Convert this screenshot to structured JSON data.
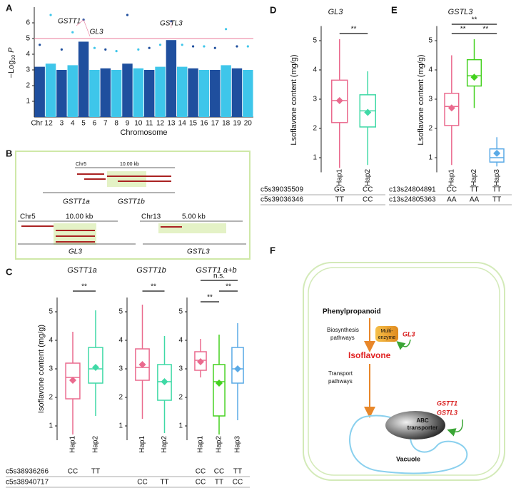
{
  "panel_labels": [
    "A",
    "B",
    "C",
    "D",
    "E",
    "F"
  ],
  "chart_data": [
    {
      "type": "manhattan",
      "ylabel": [
        "−Log",
        "10",
        "P"
      ],
      "xlabel": "Chromosome",
      "categories": [
        "Chr 1",
        "2",
        "3",
        "4",
        "5",
        "6",
        "7",
        "8",
        "9",
        "10",
        "11",
        "12",
        "13",
        "14",
        "15",
        "16",
        "17",
        "18",
        "19",
        "20"
      ],
      "values": [
        3.2,
        3.4,
        3.0,
        3.3,
        4.8,
        3.0,
        3.1,
        3.0,
        3.4,
        3.1,
        3.0,
        3.2,
        4.9,
        3.2,
        3.1,
        3.0,
        3.0,
        3.3,
        3.1,
        3.0
      ],
      "peaks": [
        4.6,
        6.5,
        4.3,
        5.4,
        6.2,
        4.4,
        4.3,
        4.2,
        6.5,
        4.3,
        4.4,
        4.6,
        6.1,
        4.6,
        4.5,
        4.5,
        4.4,
        5.6,
        4.5,
        4.5
      ],
      "colors": [
        "#1f4f9e",
        "#3ec6ea"
      ],
      "threshold": 5,
      "threshold_color": "#e8799a",
      "annotations": [
        "GSTT1",
        "GL3",
        "GSTL3"
      ],
      "ylim": [
        0,
        7
      ],
      "yticks": [
        1,
        2,
        3,
        4,
        5,
        6
      ]
    },
    {
      "type": "box",
      "title": "GSTT1a",
      "ylabel": "Isoflavone content (mg/g)",
      "categories": [
        "Hap1",
        "Hap2"
      ],
      "colors": [
        "#ea6a8e",
        "#3fd9a6"
      ],
      "boxes": [
        {
          "min": 0.7,
          "q1": 1.95,
          "median": 2.7,
          "q3": 3.2,
          "max": 4.3,
          "mean": 2.6
        },
        {
          "min": 1.35,
          "q1": 2.5,
          "median": 3.0,
          "q3": 3.75,
          "max": 5.05,
          "mean": 3.05
        }
      ],
      "comparisons": [
        {
          "pair": [
            0,
            1
          ],
          "label": "**"
        }
      ],
      "ylim": [
        0.5,
        5.5
      ],
      "yticks": [
        1,
        2,
        3,
        4,
        5
      ]
    },
    {
      "type": "box",
      "title": "GSTT1b",
      "categories": [
        "Hap1",
        "Hap2"
      ],
      "colors": [
        "#ea6a8e",
        "#3fd9a6"
      ],
      "boxes": [
        {
          "min": 1.25,
          "q1": 2.6,
          "median": 3.05,
          "q3": 3.7,
          "max": 5.25,
          "mean": 3.15
        },
        {
          "min": 0.75,
          "q1": 1.9,
          "median": 2.55,
          "q3": 3.15,
          "max": 4.15,
          "mean": 2.55
        }
      ],
      "comparisons": [
        {
          "pair": [
            0,
            1
          ],
          "label": "**"
        }
      ],
      "ylim": [
        0.5,
        5.5
      ],
      "yticks": [
        1,
        2,
        3,
        4,
        5
      ]
    },
    {
      "type": "box",
      "title": "GSTT1 a+b",
      "categories": [
        "Hap1",
        "Hap2",
        "Hap3"
      ],
      "colors": [
        "#ea6a8e",
        "#44d11f",
        "#5aaae6"
      ],
      "boxes": [
        {
          "min": 2.7,
          "q1": 2.95,
          "median": 3.3,
          "q3": 3.6,
          "max": 4.05,
          "mean": 3.25
        },
        {
          "min": 0.7,
          "q1": 1.35,
          "median": 2.55,
          "q3": 3.15,
          "max": 4.2,
          "mean": 2.5
        },
        {
          "min": 1.2,
          "q1": 2.5,
          "median": 3.0,
          "q3": 3.75,
          "max": 4.6,
          "mean": 3.0
        }
      ],
      "comparisons": [
        {
          "pair": [
            0,
            2
          ],
          "label": "n.s."
        },
        {
          "pair": [
            1,
            2
          ],
          "label": "**"
        },
        {
          "pair": [
            0,
            1
          ],
          "label": "**"
        }
      ],
      "ylim": [
        0.5,
        5.5
      ],
      "yticks": [
        1,
        2,
        3,
        4,
        5
      ]
    },
    {
      "type": "box",
      "title": "GL3",
      "ylabel": "Lsoflavone content (mg/g)",
      "categories": [
        "Hap1",
        "Hap2"
      ],
      "colors": [
        "#ea6a8e",
        "#3fd9a6"
      ],
      "boxes": [
        {
          "min": 0.65,
          "q1": 2.2,
          "median": 2.95,
          "q3": 3.65,
          "max": 5.05,
          "mean": 2.95
        },
        {
          "min": 0.75,
          "q1": 2.05,
          "median": 2.6,
          "q3": 3.15,
          "max": 3.95,
          "mean": 2.55
        }
      ],
      "comparisons": [
        {
          "pair": [
            0,
            1
          ],
          "label": "**"
        }
      ],
      "genotypes": [
        {
          "snp": "c5s39035509",
          "calls": [
            "GG",
            "CC"
          ]
        },
        {
          "snp": "c5s39036346",
          "calls": [
            "TT",
            "CC"
          ]
        }
      ],
      "ylim": [
        0.5,
        5.5
      ],
      "yticks": [
        1,
        2,
        3,
        4,
        5
      ]
    },
    {
      "type": "box",
      "title": "GSTL3",
      "ylabel": "Lsoflavone content (mg/g)",
      "categories": [
        "Hap1",
        "Hap2",
        "Hap3"
      ],
      "colors": [
        "#ea6a8e",
        "#44d11f",
        "#5aaae6"
      ],
      "boxes": [
        {
          "min": 0.75,
          "q1": 2.1,
          "median": 2.75,
          "q3": 3.2,
          "max": 4.5,
          "mean": 2.7
        },
        {
          "min": 2.7,
          "q1": 3.45,
          "median": 3.8,
          "q3": 4.35,
          "max": 5.05,
          "mean": 3.75
        },
        {
          "min": 0.7,
          "q1": 0.85,
          "median": 1.0,
          "q3": 1.3,
          "max": 1.7,
          "mean": 1.15
        }
      ],
      "comparisons": [
        {
          "pair": [
            0,
            2
          ],
          "label": "**"
        },
        {
          "pair": [
            0,
            1
          ],
          "label": "**"
        },
        {
          "pair": [
            1,
            2
          ],
          "label": "**"
        }
      ],
      "genotypes": [
        {
          "snp": "c13s24804891",
          "calls": [
            "CC",
            "TT",
            "TT"
          ]
        },
        {
          "snp": "c13s24805363",
          "calls": [
            "AA",
            "AA",
            "TT"
          ]
        }
      ],
      "ylim": [
        0.5,
        5.5
      ],
      "yticks": [
        1,
        2,
        3,
        4,
        5
      ]
    }
  ],
  "table_c": {
    "rows": [
      {
        "snp": "c5s38936266",
        "calls": [
          "CC",
          "TT",
          null,
          null,
          "CC",
          "CC",
          "TT"
        ]
      },
      {
        "snp": "c5s38940717",
        "calls": [
          null,
          null,
          "CC",
          "TT",
          "CC",
          "TT",
          "CC"
        ]
      }
    ]
  },
  "panel_b": {
    "tracks": [
      {
        "chromosome": "Chr5",
        "scale": "10.00 kb",
        "genes": [
          "GSTT1a",
          "GSTT1b"
        ]
      },
      {
        "chromosome": "Chr5",
        "scale": "10.00 kb",
        "genes": [
          "GL3"
        ]
      },
      {
        "chromosome": "Chr13",
        "scale": "5.00 kb",
        "genes": [
          "GSTL3"
        ]
      }
    ]
  },
  "panel_f": {
    "precursor": "Phenylpropanoid",
    "step1": [
      "Biosynthesis",
      "pathways"
    ],
    "enzyme": [
      "Multi-",
      "enzyme"
    ],
    "gene1": "GL3",
    "product": "Isoflavone",
    "step2": [
      "Transport",
      "pathways"
    ],
    "genes2": [
      "GSTT1",
      "GSTL3"
    ],
    "transporter": [
      "ABC",
      "transporter"
    ],
    "compartment": "Vacuole"
  }
}
